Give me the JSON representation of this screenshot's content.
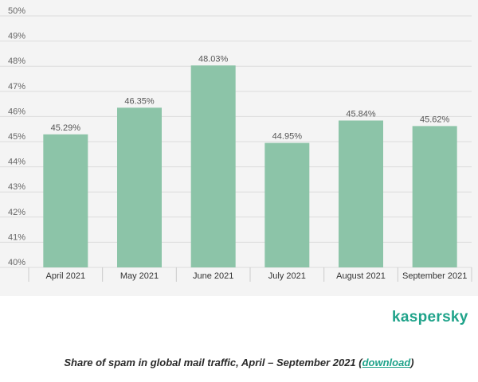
{
  "chart_data": {
    "type": "bar",
    "categories": [
      "April 2021",
      "May 2021",
      "June 2021",
      "July 2021",
      "August 2021",
      "September 2021"
    ],
    "values": [
      45.29,
      46.35,
      48.03,
      44.95,
      45.84,
      45.62
    ],
    "data_labels": [
      "45.29%",
      "46.35%",
      "48.03%",
      "44.95%",
      "45.84%",
      "45.62%"
    ],
    "y_ticks": [
      40,
      41,
      42,
      43,
      44,
      45,
      46,
      47,
      48,
      49,
      50
    ],
    "y_tick_labels": [
      "40%",
      "41%",
      "42%",
      "43%",
      "44%",
      "45%",
      "46%",
      "47%",
      "48%",
      "49%",
      "50%"
    ],
    "ylim": [
      40,
      50
    ],
    "grid": true,
    "bar_color": "#8cc4a8",
    "title": "",
    "xlabel": "",
    "ylabel": ""
  },
  "brand": {
    "name": "kaspersky",
    "color": "#1fa38a"
  },
  "caption": {
    "text": "Share of spam in global mail traffic, April – September 2021 (",
    "link": "download",
    "suffix": ")"
  }
}
